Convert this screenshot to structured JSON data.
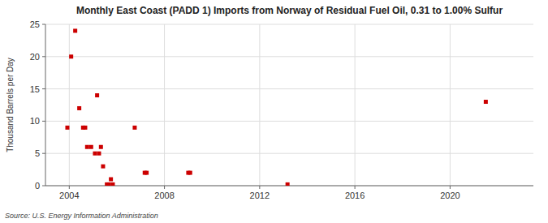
{
  "chart_data": {
    "type": "scatter",
    "title": "Monthly East Coast (PADD 1) Imports from Norway of Residual Fuel Oil, 0.31 to 1.00% Sulfur",
    "ylabel": "Thousand Barrels per Day",
    "source": "Source: U.S. Energy Information Administration",
    "color": "#cc0000",
    "marker": "square",
    "grid": true,
    "xlim": [
      2003.0,
      2023.5
    ],
    "ylim": [
      0,
      25
    ],
    "xticks": [
      2004,
      2008,
      2012,
      2016,
      2020
    ],
    "yticks": [
      0,
      5,
      10,
      15,
      20,
      25
    ],
    "x": [
      2003.92,
      2004.08,
      2004.25,
      2004.42,
      2004.58,
      2004.67,
      2004.75,
      2004.92,
      2005.08,
      2005.17,
      2005.25,
      2005.33,
      2005.42,
      2005.58,
      2005.67,
      2005.75,
      2005.83,
      2006.75,
      2007.17,
      2007.25,
      2009.0,
      2009.08,
      2013.17,
      2021.5
    ],
    "values": [
      9.0,
      20.0,
      24.0,
      12.0,
      9.0,
      9.0,
      6.0,
      6.0,
      5.0,
      14.0,
      5.0,
      6.0,
      3.0,
      0.2,
      0.2,
      1.0,
      0.2,
      9.0,
      2.0,
      2.0,
      2.0,
      2.0,
      0.2,
      13.0
    ]
  }
}
